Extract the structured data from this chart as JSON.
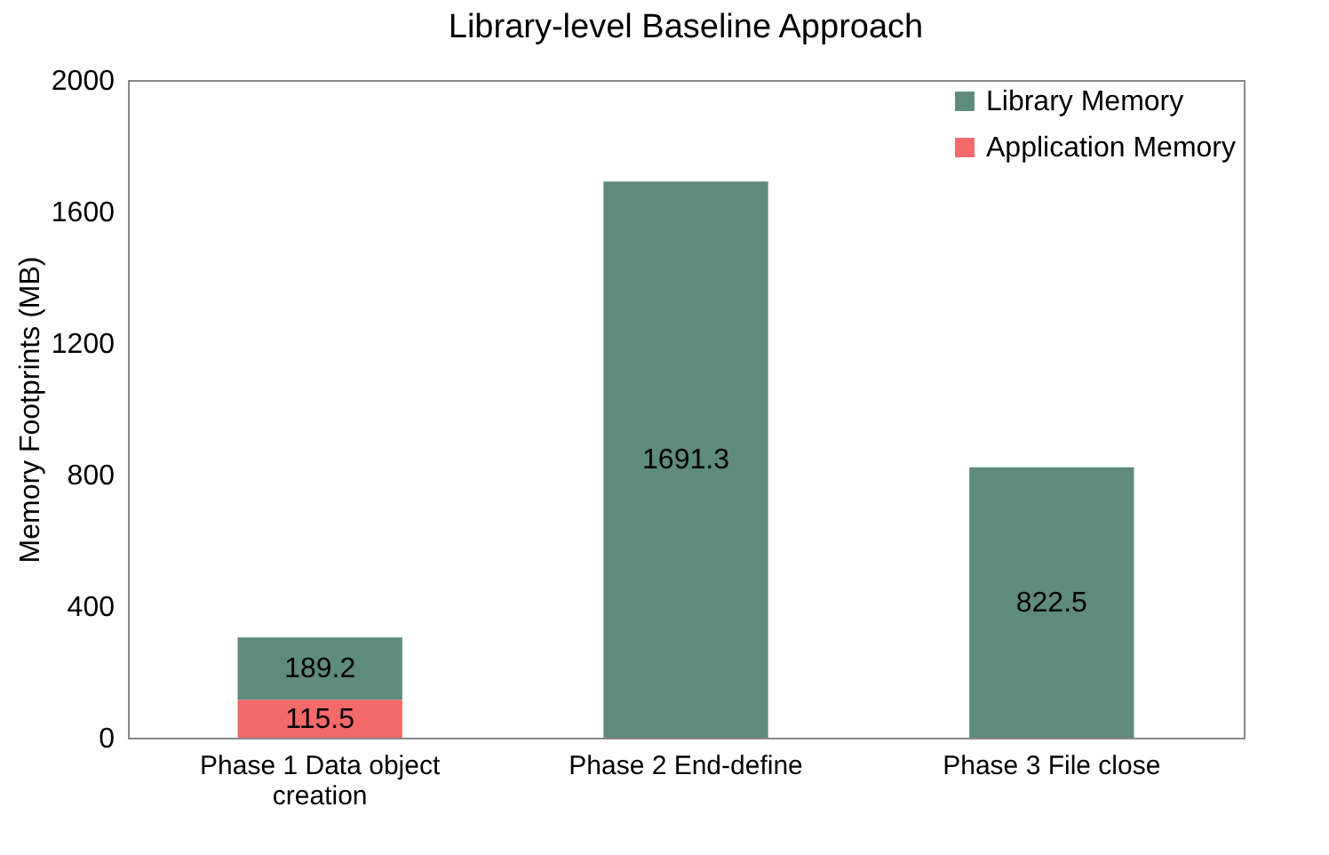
{
  "chart_data": {
    "type": "bar",
    "title": "Library-level Baseline Approach",
    "ylabel": "Memory Footprints (MB)",
    "categories": [
      "Phase 1 Data object creation",
      "Phase 2 End-define",
      "Phase 3 File close"
    ],
    "series": [
      {
        "name": "Application Memory",
        "color": "#f26a6a",
        "values": [
          115.5,
          null,
          null
        ]
      },
      {
        "name": "Library Memory",
        "color": "#5e8b7b",
        "values": [
          189.2,
          1691.3,
          822.5
        ]
      }
    ],
    "stacked": true,
    "ylim": [
      0,
      2000
    ],
    "yticks": [
      0,
      400,
      800,
      1200,
      1600,
      2000
    ],
    "data_labels": true,
    "legend": "top right",
    "grid": false
  }
}
